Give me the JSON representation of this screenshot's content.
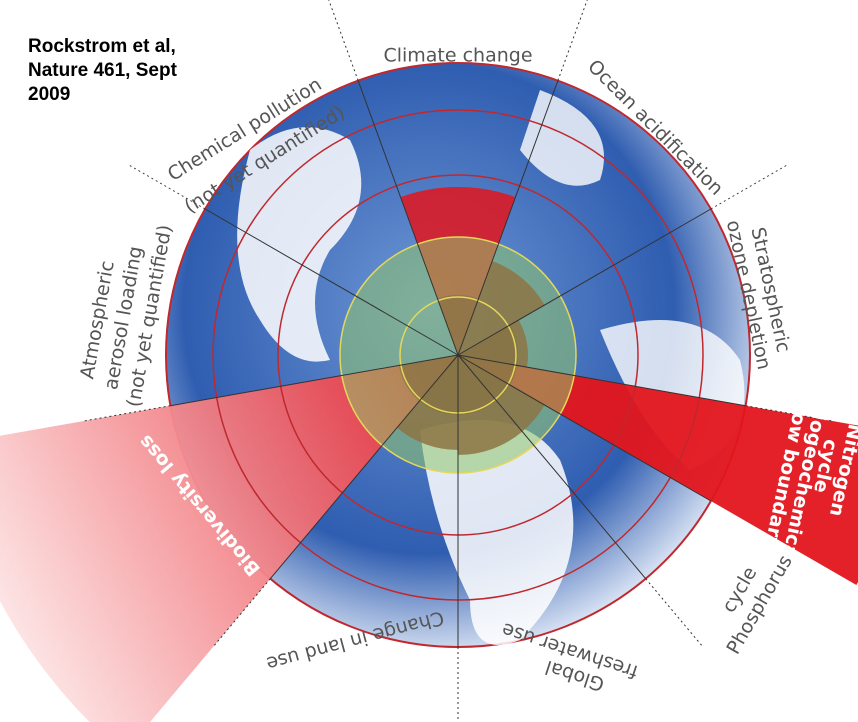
{
  "header": {
    "title": [
      "Rockstrom et al,",
      "Nature 461, Sept",
      "2009"
    ]
  },
  "sectors": [
    {
      "label": [
        "Climate change"
      ]
    },
    {
      "label": [
        "Ocean acidification"
      ]
    },
    {
      "label": [
        "Stratospheric",
        "ozone depletion"
      ]
    },
    {
      "label": [
        "Nitrogen",
        "cycle",
        "(biogeochemical",
        "flow boundary)"
      ]
    },
    {
      "label": [
        "Phosphorus",
        "cycle"
      ]
    },
    {
      "label": [
        "Global",
        "freshwater use"
      ]
    },
    {
      "label": [
        "Change in land use"
      ]
    },
    {
      "label": [
        "Biodiversity loss"
      ]
    },
    {
      "label": [
        "Atmospheric",
        "aerosol loading",
        "(not yet quantified)"
      ]
    },
    {
      "label": [
        "Chemical pollution",
        "(not yet quantified)"
      ]
    }
  ]
}
